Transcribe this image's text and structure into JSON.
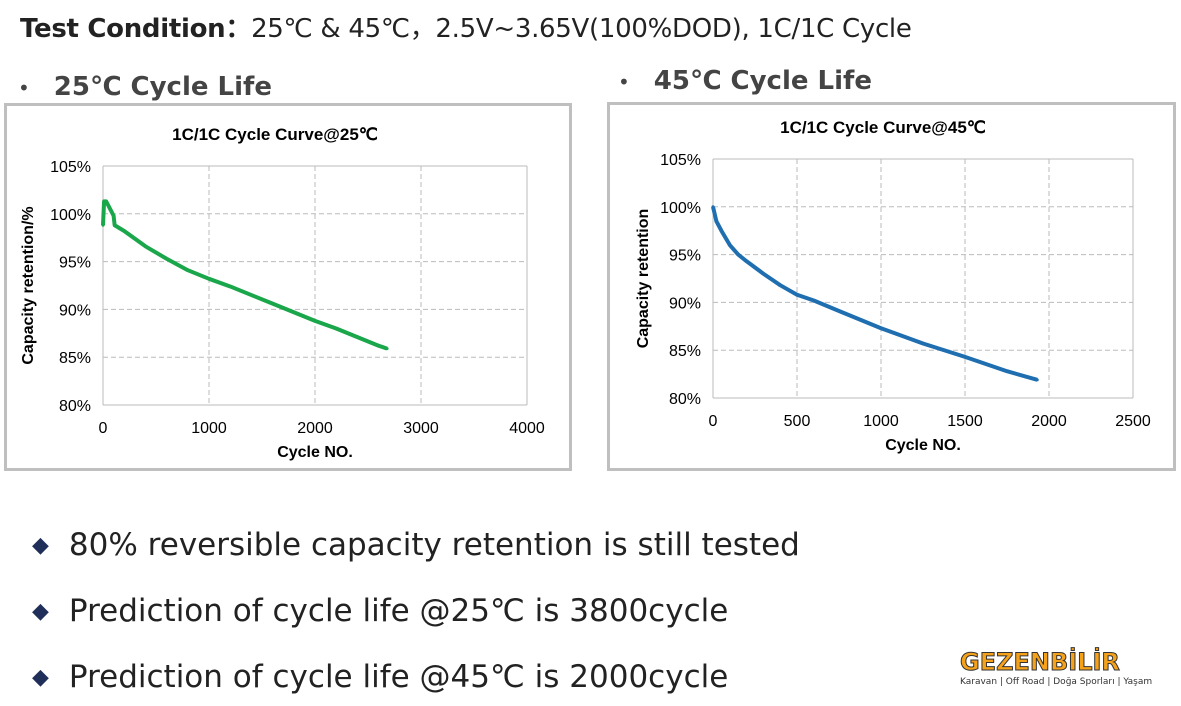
{
  "header": {
    "label": "Test Condition：",
    "text": "25℃ & 45℃，2.5V~3.65V(100%DOD), 1C/1C Cycle"
  },
  "sections": [
    {
      "bullet": "•",
      "title": "25℃ Cycle Life"
    },
    {
      "bullet": "•",
      "title": "45℃ Cycle Life"
    }
  ],
  "chart_data": [
    {
      "type": "line",
      "title": "1C/1C Cycle Curve@25℃",
      "xlabel": "Cycle NO.",
      "ylabel": "Capacity retention/%",
      "xlim": [
        0,
        4000
      ],
      "ylim": [
        80,
        105
      ],
      "xticks": [
        "0",
        "1000",
        "2000",
        "3000",
        "4000"
      ],
      "yticks": [
        "80%",
        "85%",
        "90%",
        "95%",
        "100%",
        "105%"
      ],
      "grid": true,
      "color": "#1aa64a",
      "x": [
        0,
        10,
        30,
        100,
        110,
        200,
        400,
        600,
        800,
        1000,
        1200,
        1400,
        1600,
        1800,
        2000,
        2200,
        2400,
        2600,
        2680
      ],
      "y": [
        98.8,
        101.3,
        101.3,
        99.8,
        98.8,
        98.2,
        96.6,
        95.3,
        94.1,
        93.2,
        92.4,
        91.5,
        90.6,
        89.7,
        88.8,
        88.0,
        87.1,
        86.2,
        85.9
      ]
    },
    {
      "type": "line",
      "title": "1C/1C Cycle Curve@45℃",
      "xlabel": "Cycle NO.",
      "ylabel": "Capacity retention",
      "xlim": [
        0,
        2500
      ],
      "ylim": [
        80,
        105
      ],
      "xticks": [
        "0",
        "500",
        "1000",
        "1500",
        "2000",
        "2500"
      ],
      "yticks": [
        "80%",
        "85%",
        "90%",
        "95%",
        "100%",
        "105%"
      ],
      "grid": true,
      "color": "#1f6fb0",
      "x": [
        0,
        20,
        50,
        100,
        150,
        200,
        300,
        400,
        500,
        600,
        750,
        1000,
        1250,
        1500,
        1750,
        1930
      ],
      "y": [
        100,
        98.5,
        97.5,
        96,
        95,
        94.3,
        93,
        91.8,
        90.8,
        90.2,
        89.1,
        87.3,
        85.7,
        84.3,
        82.8,
        81.9
      ]
    }
  ],
  "bullets": [
    "80% reversible capacity retention is still tested",
    "Prediction of cycle life @25℃ is 3800cycle",
    "Prediction of cycle life @45℃ is 2000cycle"
  ],
  "logo": {
    "name": "GEZENBİLİR",
    "tagline": "Karavan | Off Road | Doğa Sporları | Yaşam"
  }
}
